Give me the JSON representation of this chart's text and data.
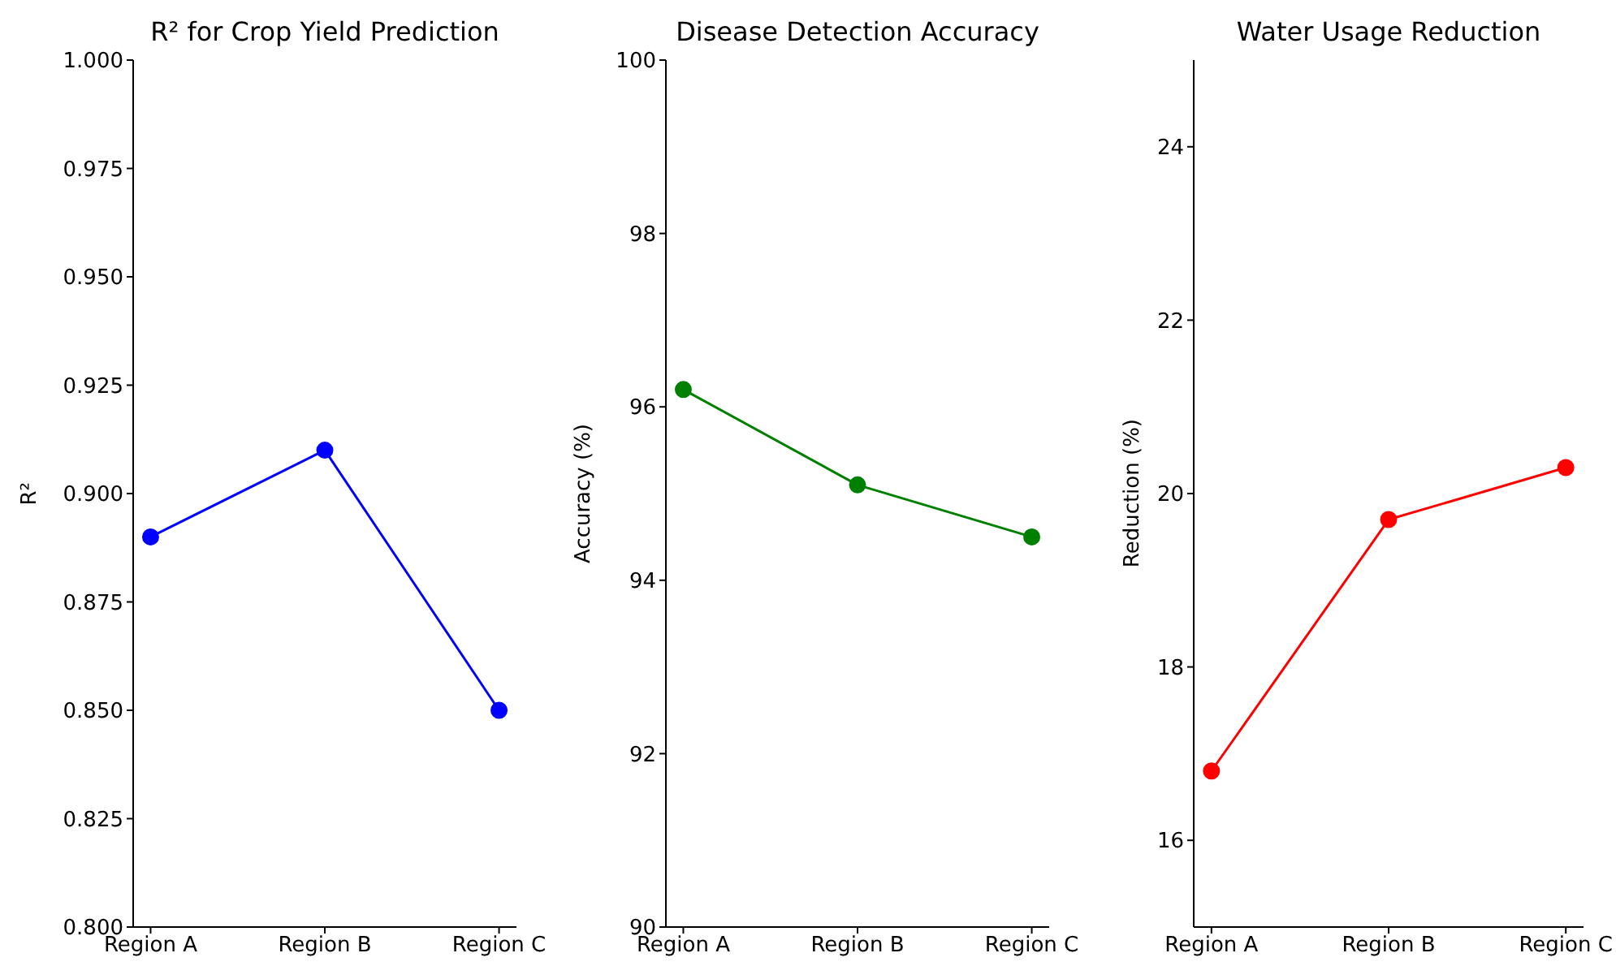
{
  "chart_data": [
    {
      "type": "line",
      "title": "R² for Crop Yield Prediction",
      "ylabel": "R²",
      "categories": [
        "Region A",
        "Region B",
        "Region C"
      ],
      "series": [
        {
          "color": "#0000ff",
          "values": [
            0.89,
            0.91,
            0.85
          ]
        }
      ],
      "ylim": [
        0.8,
        1.0
      ],
      "yticks": [
        {
          "value": 0.8,
          "label": "0.800"
        },
        0.825,
        {
          "value": 0.85,
          "label": "0.850"
        },
        0.875,
        {
          "value": 0.9,
          "label": "0.900"
        },
        0.925,
        {
          "value": 0.95,
          "label": "0.950"
        },
        0.975,
        {
          "value": 1,
          "label": "1.000"
        }
      ],
      "marker": "circle"
    },
    {
      "type": "line",
      "title": "Disease Detection Accuracy",
      "ylabel": "Accuracy (%)",
      "categories": [
        "Region A",
        "Region B",
        "Region C"
      ],
      "series": [
        {
          "color": "#008000",
          "values": [
            96.2,
            95.1,
            94.5
          ]
        }
      ],
      "ylim": [
        90,
        100
      ],
      "yticks": [
        90,
        92,
        94,
        96,
        98,
        100
      ],
      "marker": "circle"
    },
    {
      "type": "line",
      "title": "Water Usage Reduction",
      "ylabel": "Reduction (%)",
      "categories": [
        "Region A",
        "Region B",
        "Region C"
      ],
      "series": [
        {
          "color": "#ff0000",
          "values": [
            16.8,
            19.7,
            20.3
          ]
        }
      ],
      "ylim": [
        15,
        25
      ],
      "yticks": [
        16,
        18,
        20,
        22,
        24
      ],
      "marker": "circle"
    }
  ]
}
